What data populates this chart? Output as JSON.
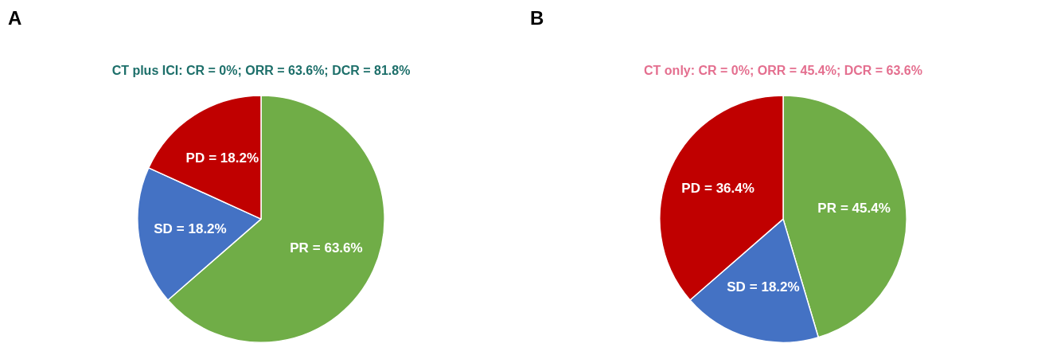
{
  "chart_data": [
    {
      "type": "pie",
      "title": "CT plus ICI: CR = 0%; ORR = 63.6%; DCR = 81.8%",
      "annotations": [
        "A"
      ],
      "categories": [
        "PR",
        "SD",
        "PD"
      ],
      "values": [
        63.6,
        18.2,
        18.2
      ],
      "colors": [
        "#70ad47",
        "#4472c4",
        "#c00000"
      ],
      "value_labels": [
        "= 63.6%",
        "= 18.2%",
        "= 18.2%"
      ],
      "legend": false
    },
    {
      "type": "pie",
      "title": "CT only: CR = 0%; ORR = 45.4%; DCR = 63.6%",
      "annotations": [
        "B"
      ],
      "categories": [
        "PR",
        "SD",
        "PD"
      ],
      "values": [
        45.4,
        18.2,
        36.4
      ],
      "colors": [
        "#70ad47",
        "#4472c4",
        "#c00000"
      ],
      "value_labels": [
        "= 45.4%",
        "= 18.2%",
        "= 36.4%"
      ],
      "legend": false
    }
  ]
}
